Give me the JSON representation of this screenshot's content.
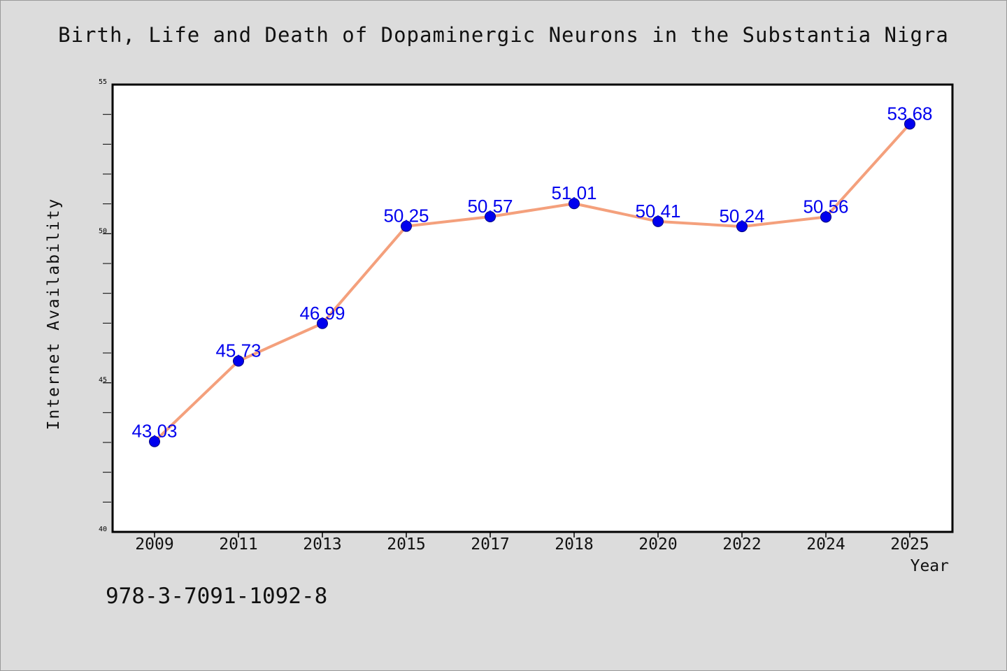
{
  "chart_data": {
    "type": "line",
    "title": "Birth, Life and Death of Dopaminergic Neurons in the Substantia Nigra",
    "xlabel": "Year",
    "ylabel": "Internet Availability",
    "categories": [
      "2009",
      "2011",
      "2013",
      "2015",
      "2017",
      "2018",
      "2020",
      "2022",
      "2024",
      "2025"
    ],
    "values": [
      43.03,
      45.73,
      46.99,
      50.25,
      50.57,
      51.01,
      50.41,
      50.24,
      50.56,
      53.68
    ],
    "value_labels": [
      "43.03",
      "45.73",
      "46.99",
      "50.25",
      "50.57",
      "51.01",
      "50.41",
      "50.24",
      "50.56",
      "53.68"
    ],
    "ylim": [
      40,
      55
    ],
    "yticks": [
      40,
      45,
      50,
      55
    ],
    "grid": false,
    "legend": "none",
    "colors": {
      "line": "#f4a07c",
      "marker": "#0000ee",
      "marker_edge": "#000080",
      "label": "#0000ee",
      "background": "#dcdcdc",
      "plot_background": "#ffffff"
    }
  },
  "footer": {
    "isbn": "978-3-7091-1092-8"
  }
}
